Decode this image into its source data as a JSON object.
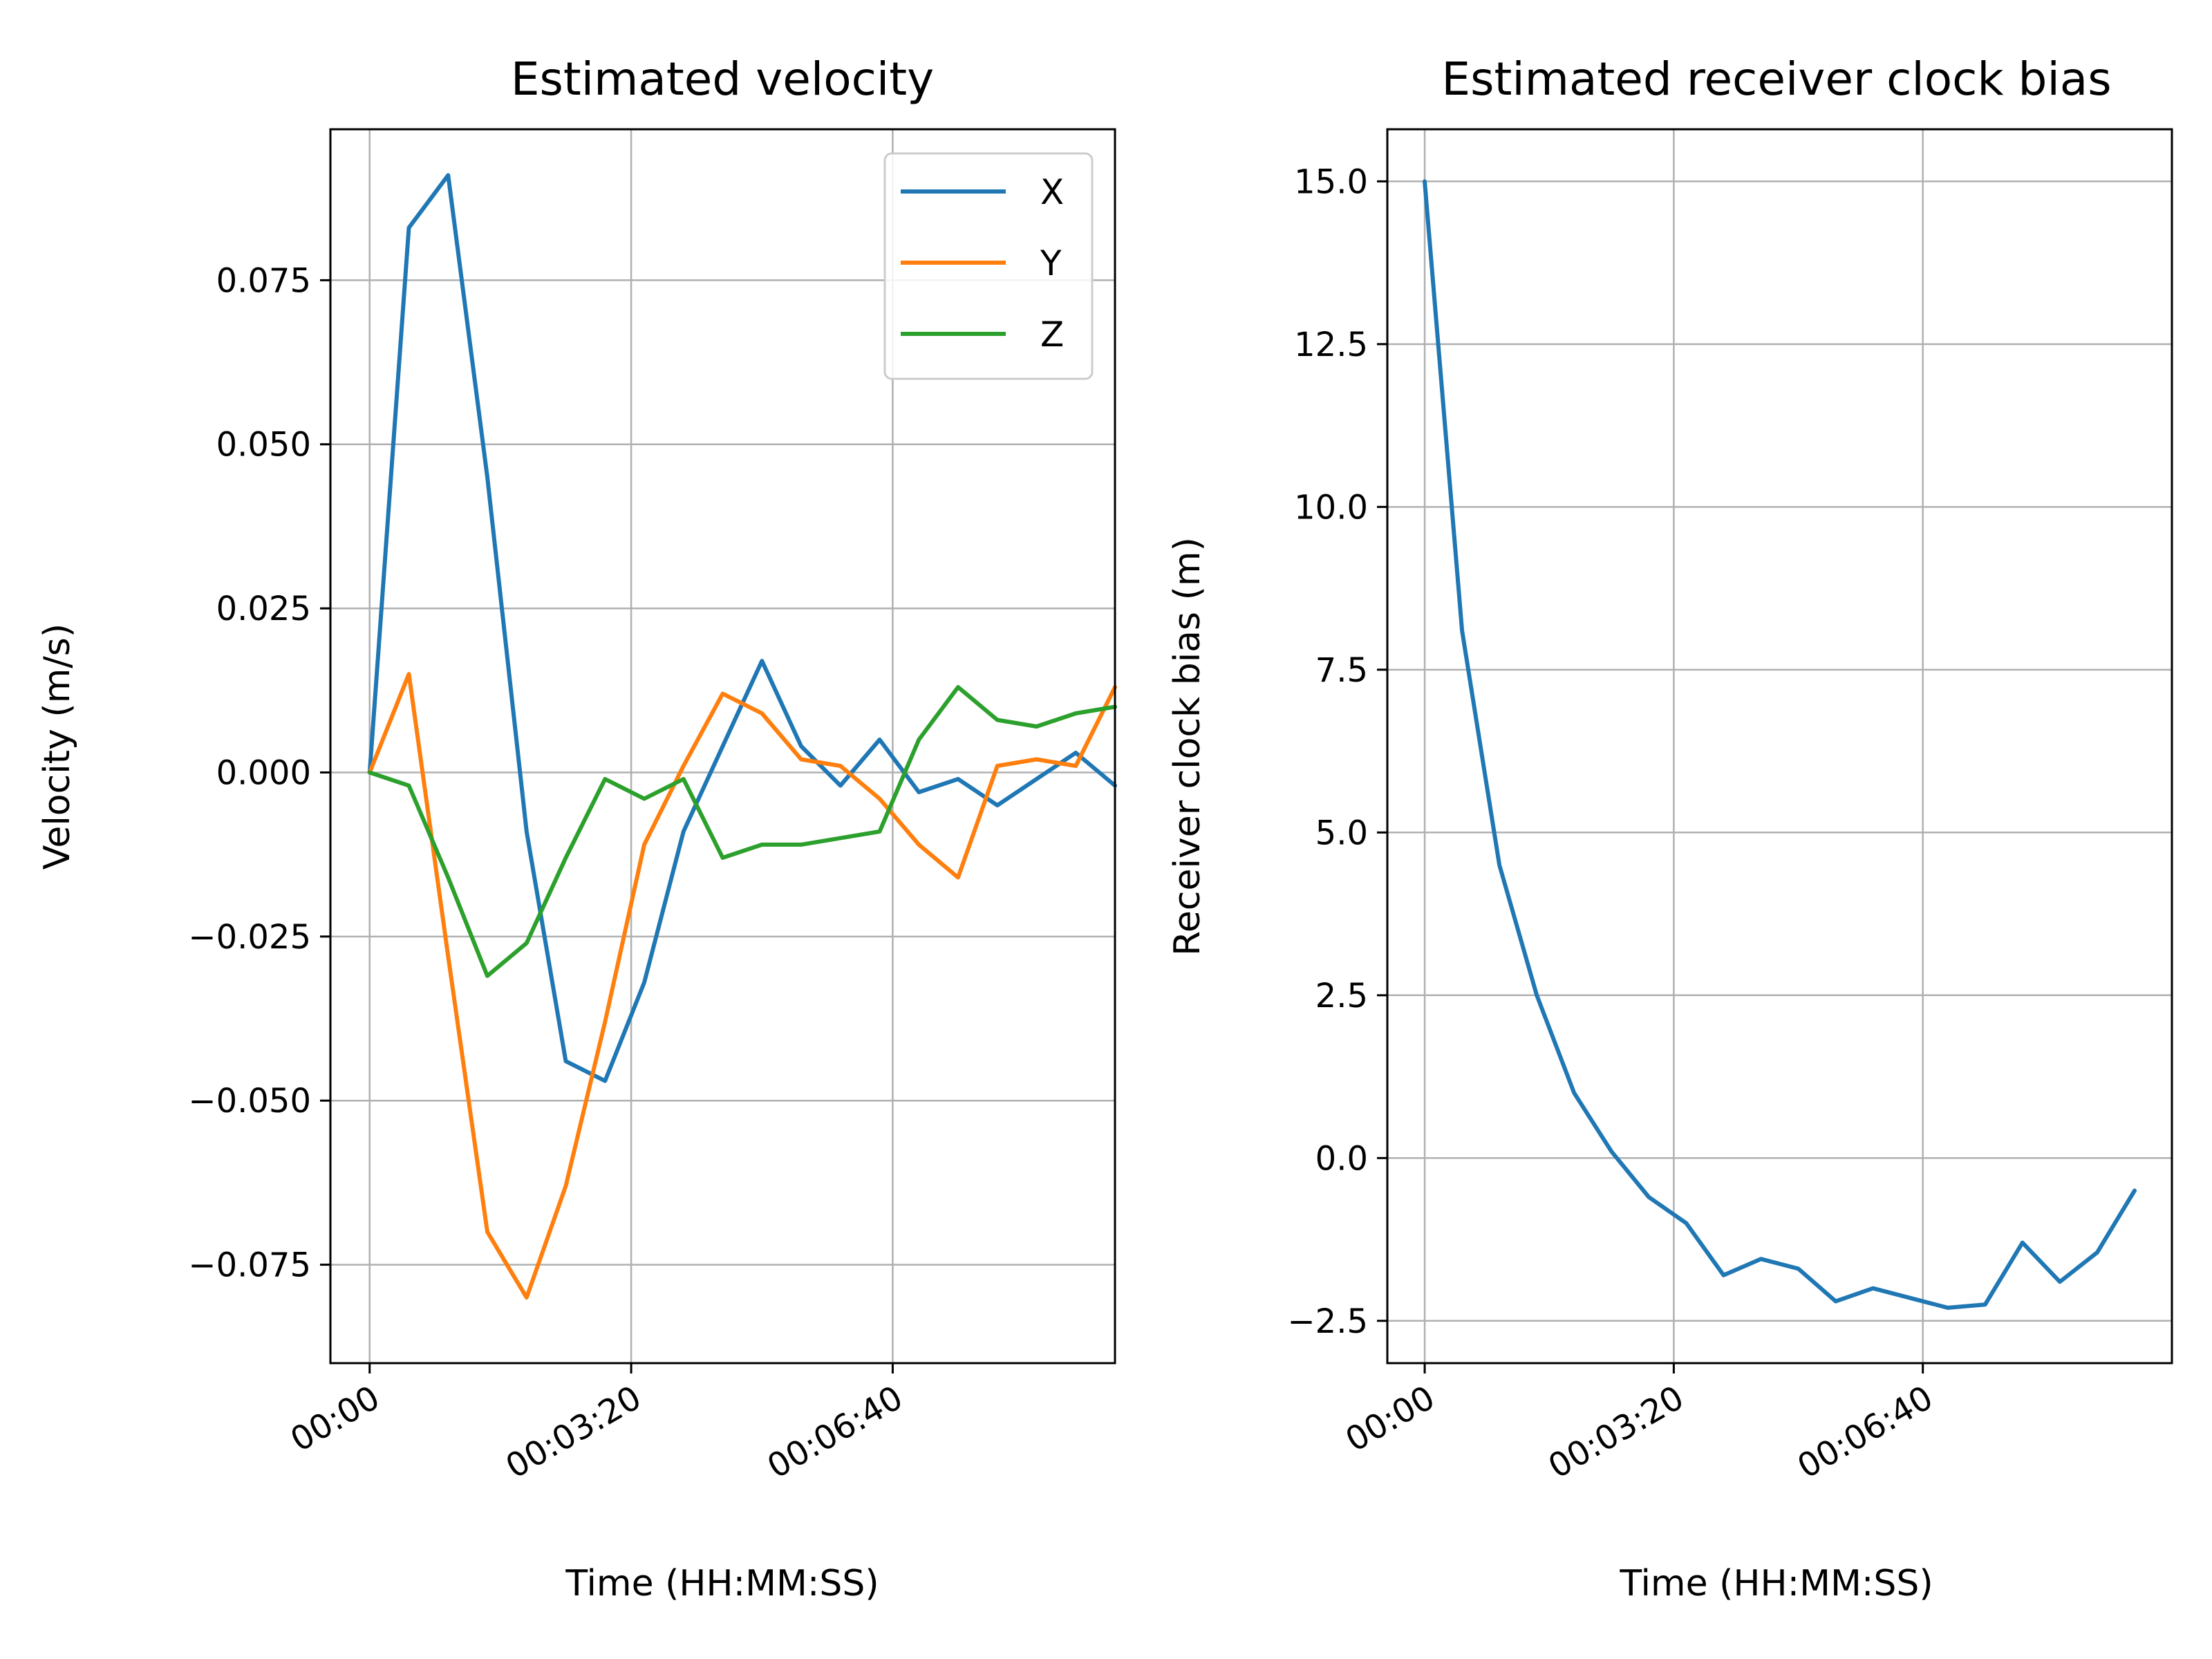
{
  "colors": {
    "x": "#1f77b4",
    "y": "#ff7f0e",
    "z": "#2ca02c",
    "grid": "#b0b0b0"
  },
  "chart_data": [
    {
      "type": "line",
      "title": "Estimated velocity",
      "xlabel": "Time (HH:MM:SS)",
      "ylabel": "Velocity (m/s)",
      "x_unit": "seconds",
      "xlim": [
        -30,
        570
      ],
      "ylim": [
        -0.09,
        0.098
      ],
      "xticks": [
        0,
        200,
        400
      ],
      "xtick_labels": [
        "00:00",
        "00:03:20",
        "00:06:40"
      ],
      "yticks": [
        -0.075,
        -0.05,
        -0.025,
        0.0,
        0.025,
        0.05,
        0.075
      ],
      "ytick_labels": [
        "−0.075",
        "−0.050",
        "−0.025",
        "0.000",
        "0.025",
        "0.050",
        "0.075"
      ],
      "grid": true,
      "legend": "top-right",
      "x": [
        0,
        30,
        60,
        90,
        120,
        150,
        180,
        210,
        240,
        270,
        300,
        330,
        360,
        390,
        420,
        450,
        480,
        510,
        540,
        570
      ],
      "series": [
        {
          "name": "X",
          "color": "#1f77b4",
          "values": [
            0.0,
            0.083,
            0.091,
            0.045,
            -0.009,
            -0.044,
            -0.047,
            -0.032,
            -0.009,
            0.004,
            0.017,
            0.004,
            -0.002,
            0.005,
            -0.003,
            -0.001,
            -0.005,
            -0.001,
            0.003,
            -0.002
          ]
        },
        {
          "name": "Y",
          "color": "#ff7f0e",
          "values": [
            0.0,
            0.015,
            -0.028,
            -0.07,
            -0.08,
            -0.063,
            -0.038,
            -0.011,
            0.001,
            0.012,
            0.009,
            0.002,
            0.001,
            -0.004,
            -0.011,
            -0.016,
            0.001,
            0.002,
            0.001,
            0.013
          ]
        },
        {
          "name": "Z",
          "color": "#2ca02c",
          "values": [
            0.0,
            -0.002,
            -0.016,
            -0.031,
            -0.026,
            -0.013,
            -0.001,
            -0.004,
            -0.001,
            -0.013,
            -0.011,
            -0.011,
            -0.01,
            -0.009,
            0.005,
            0.013,
            0.008,
            0.007,
            0.009,
            0.01
          ]
        }
      ]
    },
    {
      "type": "line",
      "title": "Estimated receiver clock bias",
      "xlabel": "Time (HH:MM:SS)",
      "ylabel": "Receiver clock bias (m)",
      "x_unit": "seconds",
      "xlim": [
        -30,
        600
      ],
      "ylim": [
        -3.15,
        15.8
      ],
      "xticks": [
        0,
        200,
        400
      ],
      "xtick_labels": [
        "00:00",
        "00:03:20",
        "00:06:40"
      ],
      "yticks": [
        -2.5,
        0.0,
        2.5,
        5.0,
        7.5,
        10.0,
        12.5,
        15.0
      ],
      "ytick_labels": [
        "−2.5",
        "0.0",
        "2.5",
        "5.0",
        "7.5",
        "10.0",
        "12.5",
        "15.0"
      ],
      "grid": true,
      "x": [
        0,
        30,
        60,
        90,
        120,
        150,
        180,
        210,
        240,
        270,
        300,
        330,
        360,
        390,
        420,
        450,
        480,
        510,
        540,
        570
      ],
      "series": [
        {
          "name": "Receiver clock bias",
          "color": "#1f77b4",
          "values": [
            15.0,
            8.1,
            4.5,
            2.5,
            1.0,
            0.1,
            -0.6,
            -1.0,
            -1.8,
            -1.55,
            -1.7,
            -2.2,
            -2.0,
            -2.15,
            -2.3,
            -2.25,
            -1.3,
            -1.9,
            -1.45,
            -0.5
          ]
        }
      ]
    }
  ]
}
